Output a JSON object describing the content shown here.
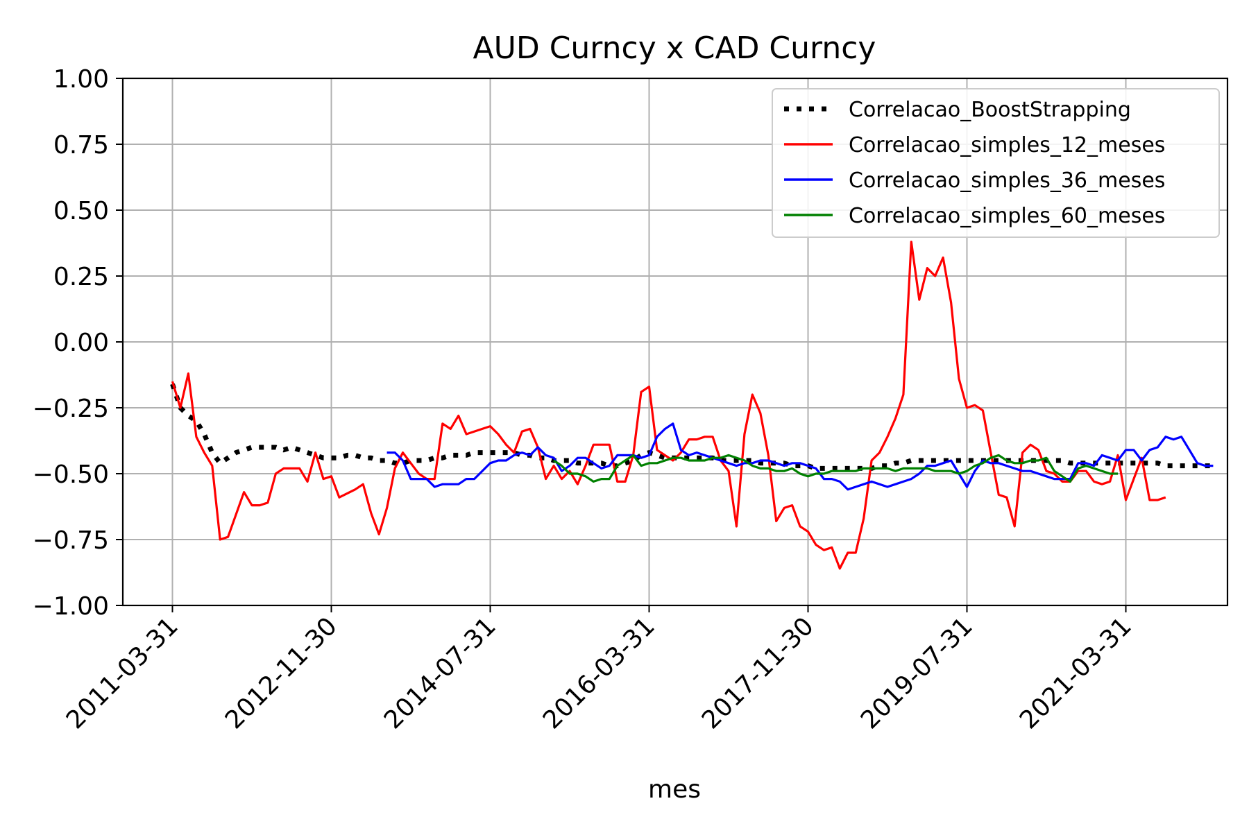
{
  "chart_data": {
    "type": "line",
    "title": "AUD Curncy x CAD Curncy",
    "xlabel": "mes",
    "ylabel": "",
    "ylim": [
      -1.0,
      1.0
    ],
    "yticks": [
      "1.00",
      "0.75",
      "0.50",
      "0.25",
      "0.00",
      "−0.25",
      "−0.50",
      "−0.75",
      "−1.00"
    ],
    "ytick_values": [
      1.0,
      0.75,
      0.5,
      0.25,
      0.0,
      -0.25,
      -0.5,
      -0.75,
      -1.0
    ],
    "xticks": [
      "2011-03-31",
      "2012-11-30",
      "2014-07-31",
      "2016-03-31",
      "2017-11-30",
      "2019-07-31",
      "2021-03-31"
    ],
    "x_start": "2011-03-31",
    "x_end": "2022-02-28",
    "grid": true,
    "legend_position": "top-right",
    "colors": {
      "boot": "#000000",
      "s12": "#ff0000",
      "s36": "#0000ff",
      "s60": "#008000"
    },
    "series": [
      {
        "name": "Correlacao_BoostStrapping",
        "key": "boot",
        "style": "dotted",
        "start": "2011-03-31",
        "values": [
          -0.16,
          -0.25,
          -0.28,
          -0.3,
          -0.35,
          -0.42,
          -0.46,
          -0.44,
          -0.42,
          -0.41,
          -0.4,
          -0.4,
          -0.4,
          -0.4,
          -0.41,
          -0.4,
          -0.41,
          -0.42,
          -0.43,
          -0.44,
          -0.44,
          -0.44,
          -0.43,
          -0.43,
          -0.44,
          -0.44,
          -0.45,
          -0.45,
          -0.46,
          -0.46,
          -0.45,
          -0.45,
          -0.45,
          -0.44,
          -0.44,
          -0.43,
          -0.43,
          -0.43,
          -0.42,
          -0.42,
          -0.42,
          -0.42,
          -0.42,
          -0.42,
          -0.43,
          -0.43,
          -0.44,
          -0.44,
          -0.45,
          -0.45,
          -0.45,
          -0.46,
          -0.46,
          -0.46,
          -0.46,
          -0.47,
          -0.47,
          -0.46,
          -0.45,
          -0.43,
          -0.42,
          -0.43,
          -0.44,
          -0.44,
          -0.44,
          -0.44,
          -0.44,
          -0.44,
          -0.44,
          -0.45,
          -0.45,
          -0.45,
          -0.45,
          -0.45,
          -0.46,
          -0.46,
          -0.46,
          -0.46,
          -0.47,
          -0.47,
          -0.47,
          -0.48,
          -0.48,
          -0.48,
          -0.48,
          -0.48,
          -0.48,
          -0.48,
          -0.48,
          -0.47,
          -0.47,
          -0.46,
          -0.46,
          -0.45,
          -0.45,
          -0.45,
          -0.45,
          -0.45,
          -0.45,
          -0.45,
          -0.45,
          -0.45,
          -0.45,
          -0.45,
          -0.45,
          -0.45,
          -0.45,
          -0.45,
          -0.45,
          -0.45,
          -0.45,
          -0.45,
          -0.45,
          -0.46,
          -0.46,
          -0.46,
          -0.46,
          -0.46,
          -0.46,
          -0.46,
          -0.46,
          -0.46,
          -0.46,
          -0.46,
          -0.46,
          -0.47,
          -0.47,
          -0.47,
          -0.47,
          -0.47,
          -0.47,
          -0.47
        ]
      },
      {
        "name": "Correlacao_simples_12_meses",
        "key": "s12",
        "style": "solid",
        "start": "2011-03-31",
        "values": [
          -0.15,
          -0.25,
          -0.12,
          -0.36,
          -0.42,
          -0.47,
          -0.75,
          -0.74,
          -0.66,
          -0.57,
          -0.62,
          -0.62,
          -0.61,
          -0.5,
          -0.48,
          -0.48,
          -0.48,
          -0.53,
          -0.42,
          -0.52,
          -0.51,
          -0.59,
          -0.57,
          -0.56,
          -0.54,
          -0.65,
          -0.73,
          -0.63,
          -0.48,
          -0.42,
          -0.46,
          -0.5,
          -0.52,
          -0.52,
          -0.31,
          -0.33,
          -0.28,
          -0.35,
          -0.34,
          -0.33,
          -0.32,
          -0.35,
          -0.39,
          -0.42,
          -0.34,
          -0.33,
          -0.4,
          -0.52,
          -0.47,
          -0.52,
          -0.49,
          -0.54,
          -0.47,
          -0.39,
          -0.39,
          -0.39,
          -0.53,
          -0.53,
          -0.43,
          -0.19,
          -0.17,
          -0.41,
          -0.43,
          -0.45,
          -0.42,
          -0.37,
          -0.37,
          -0.36,
          -0.36,
          -0.45,
          -0.49,
          -0.7,
          -0.35,
          -0.2,
          -0.27,
          -0.43,
          -0.68,
          -0.63,
          -0.62,
          -0.7,
          -0.72,
          -0.77,
          -0.79,
          -0.78,
          -0.86,
          -0.8,
          -0.8,
          -0.67,
          -0.45,
          -0.42,
          -0.36,
          -0.29,
          -0.2,
          0.38,
          0.16,
          0.28,
          0.25,
          0.32,
          0.15,
          -0.14,
          -0.25,
          -0.24,
          -0.26,
          -0.42,
          -0.58,
          -0.59,
          -0.7,
          -0.42,
          -0.39,
          -0.41,
          -0.49,
          -0.5,
          -0.53,
          -0.53,
          -0.49,
          -0.49,
          -0.53,
          -0.54,
          -0.53,
          -0.43,
          -0.6,
          -0.52,
          -0.44,
          -0.6,
          -0.6,
          -0.59
        ],
        "points": [
          [
            0,
            -0.15
          ],
          [
            1,
            -0.25
          ],
          [
            2,
            -0.12
          ],
          [
            3,
            -0.36
          ],
          [
            4,
            -0.42
          ],
          [
            5,
            -0.47
          ],
          [
            6,
            -0.75
          ],
          [
            7,
            -0.74
          ],
          [
            9,
            -0.57
          ],
          [
            10,
            -0.62
          ],
          [
            11,
            -0.62
          ],
          [
            12,
            -0.61
          ],
          [
            13,
            -0.5
          ],
          [
            14,
            -0.48
          ],
          [
            16,
            -0.48
          ],
          [
            17,
            -0.53
          ],
          [
            18,
            -0.42
          ],
          [
            19,
            -0.52
          ],
          [
            20,
            -0.51
          ],
          [
            21,
            -0.59
          ],
          [
            23,
            -0.56
          ],
          [
            24,
            -0.54
          ],
          [
            25,
            -0.65
          ],
          [
            26,
            -0.73
          ],
          [
            27,
            -0.63
          ],
          [
            28,
            -0.48
          ],
          [
            29,
            -0.42
          ],
          [
            30,
            -0.46
          ],
          [
            31,
            -0.5
          ],
          [
            32,
            -0.52
          ],
          [
            33,
            -0.52
          ],
          [
            34,
            -0.31
          ],
          [
            35,
            -0.33
          ],
          [
            36,
            -0.28
          ],
          [
            37,
            -0.35
          ],
          [
            39,
            -0.33
          ],
          [
            40,
            -0.32
          ],
          [
            41,
            -0.35
          ],
          [
            42,
            -0.39
          ],
          [
            43,
            -0.42
          ],
          [
            44,
            -0.34
          ],
          [
            45,
            -0.33
          ],
          [
            46,
            -0.4
          ],
          [
            47,
            -0.52
          ],
          [
            48,
            -0.47
          ],
          [
            49,
            -0.52
          ],
          [
            50,
            -0.49
          ],
          [
            51,
            -0.54
          ],
          [
            52,
            -0.47
          ],
          [
            53,
            -0.39
          ],
          [
            55,
            -0.39
          ],
          [
            56,
            -0.53
          ],
          [
            57,
            -0.53
          ],
          [
            58,
            -0.43
          ],
          [
            59,
            -0.19
          ],
          [
            60,
            -0.17
          ],
          [
            61,
            -0.41
          ],
          [
            62,
            -0.43
          ],
          [
            63,
            -0.45
          ],
          [
            64,
            -0.42
          ],
          [
            65,
            -0.37
          ],
          [
            66,
            -0.37
          ],
          [
            67,
            -0.36
          ],
          [
            68,
            -0.36
          ],
          [
            69,
            -0.45
          ],
          [
            70,
            -0.49
          ],
          [
            71,
            -0.7
          ],
          [
            72,
            -0.35
          ],
          [
            73,
            -0.2
          ],
          [
            74,
            -0.27
          ],
          [
            75,
            -0.43
          ],
          [
            76,
            -0.68
          ],
          [
            77,
            -0.63
          ],
          [
            78,
            -0.62
          ],
          [
            79,
            -0.7
          ],
          [
            80,
            -0.72
          ],
          [
            81,
            -0.77
          ],
          [
            82,
            -0.79
          ],
          [
            83,
            -0.78
          ],
          [
            84,
            -0.86
          ],
          [
            85,
            -0.8
          ],
          [
            86,
            -0.8
          ],
          [
            87,
            -0.67
          ],
          [
            88,
            -0.45
          ],
          [
            89,
            -0.42
          ],
          [
            90,
            -0.36
          ],
          [
            91,
            -0.29
          ],
          [
            92,
            -0.2
          ],
          [
            93,
            0.38
          ],
          [
            94,
            0.16
          ],
          [
            95,
            0.28
          ],
          [
            96,
            0.25
          ],
          [
            97,
            0.32
          ],
          [
            98,
            0.15
          ],
          [
            99,
            -0.14
          ],
          [
            100,
            -0.25
          ],
          [
            101,
            -0.24
          ],
          [
            102,
            -0.26
          ],
          [
            103,
            -0.42
          ],
          [
            104,
            -0.58
          ],
          [
            105,
            -0.59
          ],
          [
            106,
            -0.7
          ],
          [
            107,
            -0.42
          ],
          [
            108,
            -0.39
          ],
          [
            109,
            -0.41
          ],
          [
            110,
            -0.49
          ],
          [
            111,
            -0.5
          ],
          [
            112,
            -0.53
          ],
          [
            113,
            -0.53
          ],
          [
            114,
            -0.49
          ],
          [
            115,
            -0.49
          ],
          [
            116,
            -0.53
          ],
          [
            117,
            -0.54
          ],
          [
            118,
            -0.53
          ],
          [
            119,
            -0.43
          ],
          [
            120,
            -0.6
          ],
          [
            121,
            -0.52
          ],
          [
            122,
            -0.44
          ],
          [
            123,
            -0.6
          ],
          [
            124,
            -0.6
          ],
          [
            125,
            -0.59
          ]
        ]
      },
      {
        "name": "Correlacao_simples_36_meses",
        "key": "s36",
        "style": "solid",
        "start": "2013-06-30",
        "values": [
          -0.42,
          -0.42,
          -0.45,
          -0.52,
          -0.52,
          -0.52,
          -0.55,
          -0.54,
          -0.54,
          -0.54,
          -0.52,
          -0.52,
          -0.49,
          -0.46,
          -0.45,
          -0.45,
          -0.43,
          -0.42,
          -0.43,
          -0.4,
          -0.43,
          -0.44,
          -0.49,
          -0.47,
          -0.44,
          -0.44,
          -0.46,
          -0.48,
          -0.47,
          -0.43,
          -0.43,
          -0.43,
          -0.44,
          -0.43,
          -0.36,
          -0.33,
          -0.31,
          -0.41,
          -0.43,
          -0.42,
          -0.43,
          -0.44,
          -0.45,
          -0.46,
          -0.47,
          -0.46,
          -0.46,
          -0.45,
          -0.45,
          -0.46,
          -0.47,
          -0.46,
          -0.46,
          -0.47,
          -0.48,
          -0.52,
          -0.52,
          -0.53,
          -0.56,
          -0.55,
          -0.54,
          -0.53,
          -0.54,
          -0.55,
          -0.54,
          -0.53,
          -0.52,
          -0.5,
          -0.47,
          -0.47,
          -0.46,
          -0.45,
          -0.5,
          -0.55,
          -0.49,
          -0.45,
          -0.46,
          -0.46,
          -0.47,
          -0.48,
          -0.49,
          -0.49,
          -0.5,
          -0.51,
          -0.52,
          -0.52,
          -0.52,
          -0.46,
          -0.46,
          -0.47,
          -0.43,
          -0.44,
          -0.45,
          -0.41,
          -0.41,
          -0.45,
          -0.41,
          -0.4,
          -0.36,
          -0.37,
          -0.36,
          -0.41,
          -0.46,
          -0.47,
          -0.47
        ]
      },
      {
        "name": "Correlacao_simples_60_meses",
        "key": "s60",
        "style": "solid",
        "start": "2015-03-31",
        "values": [
          -0.45,
          -0.47,
          -0.5,
          -0.5,
          -0.51,
          -0.53,
          -0.52,
          -0.52,
          -0.47,
          -0.45,
          -0.43,
          -0.47,
          -0.46,
          -0.46,
          -0.45,
          -0.44,
          -0.44,
          -0.45,
          -0.45,
          -0.45,
          -0.44,
          -0.44,
          -0.43,
          -0.44,
          -0.45,
          -0.47,
          -0.48,
          -0.48,
          -0.49,
          -0.49,
          -0.48,
          -0.5,
          -0.51,
          -0.5,
          -0.5,
          -0.49,
          -0.49,
          -0.49,
          -0.49,
          -0.48,
          -0.48,
          -0.48,
          -0.48,
          -0.49,
          -0.48,
          -0.48,
          -0.48,
          -0.48,
          -0.49,
          -0.49,
          -0.49,
          -0.5,
          -0.49,
          -0.47,
          -0.46,
          -0.44,
          -0.43,
          -0.45,
          -0.46,
          -0.46,
          -0.45,
          -0.45,
          -0.44,
          -0.49,
          -0.51,
          -0.53,
          -0.48,
          -0.47,
          -0.48,
          -0.49,
          -0.5,
          -0.5
        ]
      }
    ]
  }
}
